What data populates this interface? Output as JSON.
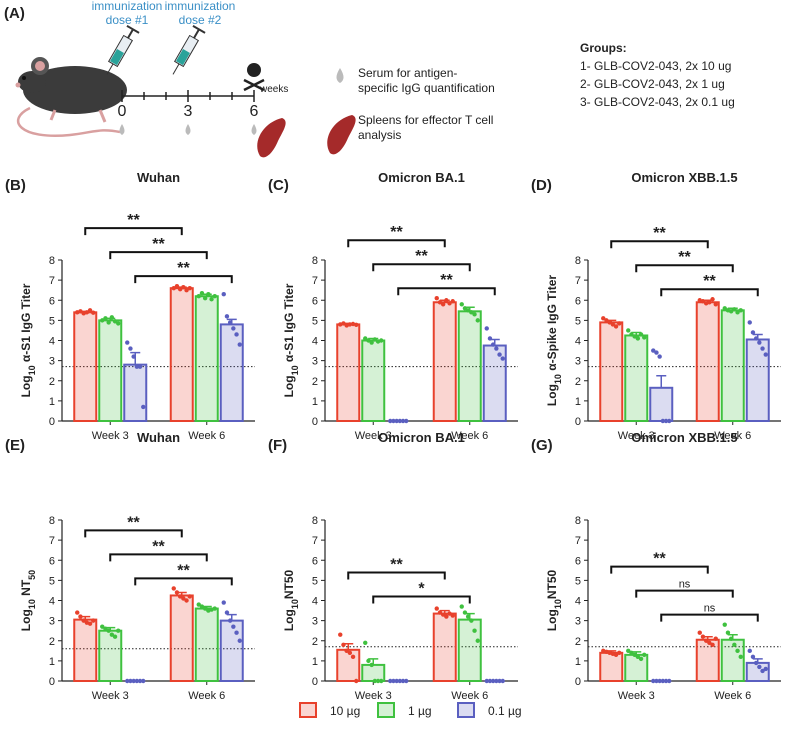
{
  "panel_a": {
    "label": "(A)",
    "dose1": [
      "immunization",
      "dose #1"
    ],
    "dose2": [
      "immunization",
      "dose #2"
    ],
    "timeline_ticks": [
      "0",
      "3",
      "6"
    ],
    "timeline_unit": "weeks",
    "serum": [
      "Serum  for antigen-",
      "specific IgG quantification"
    ],
    "spleen": [
      "Spleens for effector T cell",
      "analysis"
    ],
    "groups_title": "Groups:",
    "groups": [
      "1- GLB-COV2-043, 2x 10 ug",
      "2- GLB-COV2-043, 2x 1 ug",
      "3- GLB-COV2-043, 2x 0.1 ug"
    ]
  },
  "legend": [
    {
      "name": "10 µg",
      "color": "#e8412c"
    },
    {
      "name": "1 µg",
      "color": "#3fc13f"
    },
    {
      "name": "0.1 µg",
      "color": "#5a5fc0"
    }
  ],
  "chart_data": [
    {
      "type": "bar",
      "panel": "(B)",
      "title": "Wuhan",
      "ylabel": [
        "Log",
        "10",
        " α-S1 IgG Titer"
      ],
      "categories": [
        "Week 3",
        "Week 6"
      ],
      "ylim": [
        0,
        8
      ],
      "yticks": [
        0,
        1,
        2,
        3,
        4,
        5,
        6,
        7,
        8
      ],
      "reference_line": 2.7,
      "series": [
        {
          "color": "#e8412c",
          "values": [
            5.4,
            6.6
          ],
          "errors": [
            0.05,
            0.05
          ],
          "points": [
            [
              5.4,
              5.45,
              5.35,
              5.4,
              5.5,
              5.38
            ],
            [
              6.6,
              6.7,
              6.55,
              6.65,
              6.5,
              6.6
            ]
          ]
        },
        {
          "color": "#3fc13f",
          "values": [
            5.0,
            6.2
          ],
          "errors": [
            0.1,
            0.1
          ],
          "points": [
            [
              5.0,
              5.1,
              4.9,
              5.15,
              4.95,
              4.85
            ],
            [
              6.2,
              6.35,
              6.1,
              6.3,
              6.05,
              6.2
            ]
          ]
        },
        {
          "color": "#5a5fc0",
          "values": [
            2.8,
            4.8
          ],
          "errors": [
            0.6,
            0.25
          ],
          "points": [
            [
              3.9,
              3.6,
              3.2,
              2.7,
              2.7,
              0.7
            ],
            [
              6.3,
              5.2,
              4.9,
              4.6,
              4.3,
              3.8
            ]
          ]
        }
      ],
      "comparisons": [
        {
          "label": "**",
          "series": 0
        },
        {
          "label": "**",
          "series": 1
        },
        {
          "label": "**",
          "series": 2
        }
      ]
    },
    {
      "type": "bar",
      "panel": "(C)",
      "title": "Omicron BA.1",
      "ylabel": [
        "Log",
        "10",
        " α-S1 IgG Titer"
      ],
      "categories": [
        "Week 3",
        "Week 6"
      ],
      "ylim": [
        0,
        8
      ],
      "yticks": [
        0,
        1,
        2,
        3,
        4,
        5,
        6,
        7,
        8
      ],
      "reference_line": 2.7,
      "series": [
        {
          "color": "#e8412c",
          "values": [
            4.8,
            5.9
          ],
          "errors": [
            0.05,
            0.1
          ],
          "points": [
            [
              4.8,
              4.85,
              4.75,
              4.8,
              4.82,
              4.78
            ],
            [
              6.1,
              5.9,
              5.8,
              6.0,
              5.85,
              5.95
            ]
          ]
        },
        {
          "color": "#3fc13f",
          "values": [
            4.0,
            5.45
          ],
          "errors": [
            0.1,
            0.2
          ],
          "points": [
            [
              4.1,
              4.0,
              3.9,
              4.05,
              3.95,
              4.0
            ],
            [
              5.8,
              5.6,
              5.5,
              5.4,
              5.3,
              5.0
            ]
          ]
        },
        {
          "color": "#5a5fc0",
          "values": [
            0,
            3.75
          ],
          "errors": [
            0,
            0.3
          ],
          "points": [
            [
              0,
              0,
              0,
              0,
              0,
              0
            ],
            [
              4.6,
              4.1,
              3.8,
              3.6,
              3.3,
              3.1
            ]
          ]
        }
      ],
      "comparisons": [
        {
          "label": "**",
          "series": 0
        },
        {
          "label": "**",
          "series": 1
        },
        {
          "label": "**",
          "series": 2
        }
      ]
    },
    {
      "type": "bar",
      "panel": "(D)",
      "title": "Omicron XBB.1.5",
      "ylabel": [
        "Log",
        "10",
        " α-Spike IgG Titer"
      ],
      "categories": [
        "Week 3",
        "Week 6"
      ],
      "ylim": [
        0,
        8
      ],
      "yticks": [
        0,
        1,
        2,
        3,
        4,
        5,
        6,
        7,
        8
      ],
      "reference_line": 2.7,
      "series": [
        {
          "color": "#e8412c",
          "values": [
            4.9,
            5.9
          ],
          "errors": [
            0.1,
            0.1
          ],
          "points": [
            [
              5.1,
              5.0,
              4.9,
              4.8,
              4.7,
              4.85
            ],
            [
              6.0,
              5.95,
              5.85,
              5.9,
              6.05,
              5.8
            ]
          ]
        },
        {
          "color": "#3fc13f",
          "values": [
            4.25,
            5.5
          ],
          "errors": [
            0.15,
            0.1
          ],
          "points": [
            [
              4.5,
              4.3,
              4.2,
              4.1,
              4.3,
              4.15
            ],
            [
              5.6,
              5.5,
              5.45,
              5.55,
              5.4,
              5.5
            ]
          ]
        },
        {
          "color": "#5a5fc0",
          "values": [
            1.65,
            4.05
          ],
          "errors": [
            0.6,
            0.25
          ],
          "points": [
            [
              3.5,
              3.4,
              3.2,
              0,
              0,
              0
            ],
            [
              4.9,
              4.4,
              4.1,
              3.9,
              3.6,
              3.3
            ]
          ]
        }
      ],
      "comparisons": [
        {
          "label": "**",
          "series": 0
        },
        {
          "label": "**",
          "series": 1
        },
        {
          "label": "**",
          "series": 2
        }
      ]
    },
    {
      "type": "bar",
      "panel": "(E)",
      "title": "Wuhan",
      "ylabel": [
        "Log",
        "10",
        " NT",
        "50"
      ],
      "categories": [
        "Week 3",
        "Week 6"
      ],
      "ylim": [
        0,
        8
      ],
      "yticks": [
        0,
        1,
        2,
        3,
        4,
        5,
        6,
        7,
        8
      ],
      "reference_line": 1.6,
      "series": [
        {
          "color": "#e8412c",
          "values": [
            3.05,
            4.25
          ],
          "errors": [
            0.15,
            0.15
          ],
          "points": [
            [
              3.4,
              3.2,
              3.0,
              2.9,
              2.85,
              3.0
            ],
            [
              4.6,
              4.4,
              4.2,
              4.1,
              4.0,
              4.2
            ]
          ]
        },
        {
          "color": "#3fc13f",
          "values": [
            2.5,
            3.6
          ],
          "errors": [
            0.15,
            0.1
          ],
          "points": [
            [
              2.7,
              2.6,
              2.5,
              2.3,
              2.2,
              2.5
            ],
            [
              3.8,
              3.7,
              3.6,
              3.5,
              3.55,
              3.6
            ]
          ]
        },
        {
          "color": "#5a5fc0",
          "values": [
            0,
            3.0
          ],
          "errors": [
            0,
            0.3
          ],
          "points": [
            [
              0,
              0,
              0,
              0,
              0,
              0
            ],
            [
              3.9,
              3.4,
              3.0,
              2.7,
              2.4,
              2.0
            ]
          ]
        }
      ],
      "comparisons": [
        {
          "label": "**",
          "series": 0
        },
        {
          "label": "**",
          "series": 1
        },
        {
          "label": "**",
          "series": 2
        }
      ]
    },
    {
      "type": "bar",
      "panel": "(F)",
      "title": "Omicron BA.1",
      "ylabel": [
        "Log",
        "10",
        "NT50"
      ],
      "categories": [
        "Week 3",
        "Week 6"
      ],
      "ylim": [
        0,
        8
      ],
      "yticks": [
        0,
        1,
        2,
        3,
        4,
        5,
        6,
        7,
        8
      ],
      "reference_line": 1.7,
      "series": [
        {
          "color": "#e8412c",
          "values": [
            1.55,
            3.35
          ],
          "errors": [
            0.3,
            0.15
          ],
          "points": [
            [
              2.3,
              1.8,
              1.5,
              1.4,
              1.2,
              0
            ],
            [
              3.6,
              3.4,
              3.3,
              3.2,
              3.35,
              3.25
            ]
          ]
        },
        {
          "color": "#3fc13f",
          "values": [
            0.8,
            3.05
          ],
          "errors": [
            0.3,
            0.3
          ],
          "points": [
            [
              1.9,
              1.0,
              0.8,
              0,
              0,
              0
            ],
            [
              3.7,
              3.4,
              3.2,
              3.0,
              2.5,
              2.0
            ]
          ]
        },
        {
          "color": "#5a5fc0",
          "values": [
            0,
            0
          ],
          "errors": [
            0,
            0
          ],
          "points": [
            [
              0,
              0,
              0,
              0,
              0,
              0
            ],
            [
              0,
              0,
              0,
              0,
              0,
              0
            ]
          ]
        }
      ],
      "comparisons": [
        {
          "label": "**",
          "series": 0
        },
        {
          "label": "*",
          "series": 1
        }
      ]
    },
    {
      "type": "bar",
      "panel": "(G)",
      "title": "Omicron XBB.1.5",
      "ylabel": [
        "Log",
        "10",
        "NT50"
      ],
      "categories": [
        "Week 3",
        "Week 6"
      ],
      "ylim": [
        0,
        8
      ],
      "yticks": [
        0,
        1,
        2,
        3,
        4,
        5,
        6,
        7,
        8
      ],
      "reference_line": 1.7,
      "series": [
        {
          "color": "#e8412c",
          "values": [
            1.4,
            2.05
          ],
          "errors": [
            0.1,
            0.15
          ],
          "points": [
            [
              1.5,
              1.45,
              1.4,
              1.35,
              1.3,
              1.4
            ],
            [
              2.4,
              2.2,
              2.0,
              1.9,
              1.8,
              2.1
            ]
          ]
        },
        {
          "color": "#3fc13f",
          "values": [
            1.3,
            2.05
          ],
          "errors": [
            0.15,
            0.25
          ],
          "points": [
            [
              1.5,
              1.4,
              1.3,
              1.2,
              1.1,
              1.3
            ],
            [
              2.8,
              2.4,
              2.1,
              1.8,
              1.5,
              1.2
            ]
          ]
        },
        {
          "color": "#5a5fc0",
          "values": [
            0,
            0.9
          ],
          "errors": [
            0,
            0.2
          ],
          "points": [
            [
              0,
              0,
              0,
              0,
              0,
              0
            ],
            [
              1.5,
              1.2,
              0.9,
              0.7,
              0.5,
              0.6
            ]
          ]
        }
      ],
      "comparisons": [
        {
          "label": "**",
          "series": 0
        },
        {
          "label": "ns",
          "series": 1
        },
        {
          "label": "ns",
          "series": 2
        }
      ]
    }
  ]
}
